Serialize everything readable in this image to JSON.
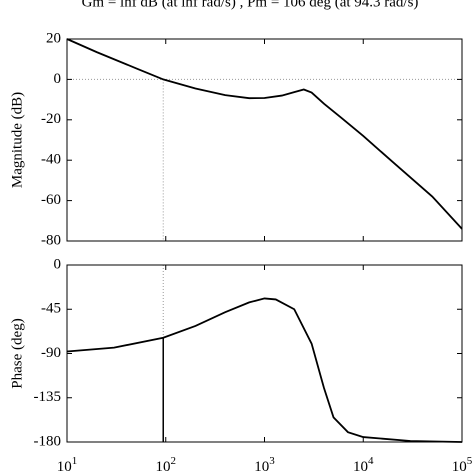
{
  "chart_data": [
    {
      "type": "line",
      "title": "Gm = inf dB (at inf rad/s) , Pm = 106 deg (at 94.3 rad/s)",
      "y_label": "Magnitude (dB)",
      "log_x": true,
      "xlim": [
        10,
        100000
      ],
      "xticks": [
        10,
        100,
        1000,
        10000,
        100000
      ],
      "ylim": [
        -80,
        20
      ],
      "yticks": [
        20,
        0,
        -20,
        -40,
        -60,
        -80
      ],
      "reference_y": 0,
      "crossover_x": 94.3,
      "series": [
        {
          "color": "#000000",
          "x": [
            10,
            20,
            50,
            94.3,
            200,
            400,
            700,
            1000,
            1500,
            2000,
            2500,
            3000,
            4000,
            6000,
            10000,
            20000,
            50000,
            100000
          ],
          "values": [
            20,
            13.5,
            5.5,
            0,
            -4.5,
            -7.8,
            -9.3,
            -9.2,
            -8,
            -6.3,
            -5,
            -6.5,
            -12,
            -19,
            -28,
            -41,
            -58,
            -74
          ]
        }
      ]
    },
    {
      "type": "line",
      "y_label": "Phase (deg)",
      "log_x": true,
      "xlim": [
        10,
        100000
      ],
      "xticks": [
        {
          "value": 10,
          "label": "10^1"
        },
        {
          "value": 100,
          "label": "10^2"
        },
        {
          "value": 1000,
          "label": "10^3"
        },
        {
          "value": 10000,
          "label": "10^4"
        },
        {
          "value": 100000,
          "label": "10^5"
        }
      ],
      "ylim": [
        -180,
        0
      ],
      "yticks": [
        0,
        -45,
        -90,
        -135,
        -180
      ],
      "reference_y": -180,
      "crossover_x": 94.3,
      "crossover_y": -74,
      "series": [
        {
          "color": "#000000",
          "x": [
            10,
            30,
            94.3,
            200,
            400,
            700,
            1000,
            1300,
            2000,
            3000,
            4000,
            5000,
            7000,
            10000,
            30000,
            100000
          ],
          "values": [
            -88,
            -84,
            -74,
            -62,
            -48,
            -38,
            -34,
            -35,
            -45,
            -80,
            -125,
            -155,
            -170,
            -175,
            -179,
            -180
          ]
        }
      ]
    }
  ]
}
